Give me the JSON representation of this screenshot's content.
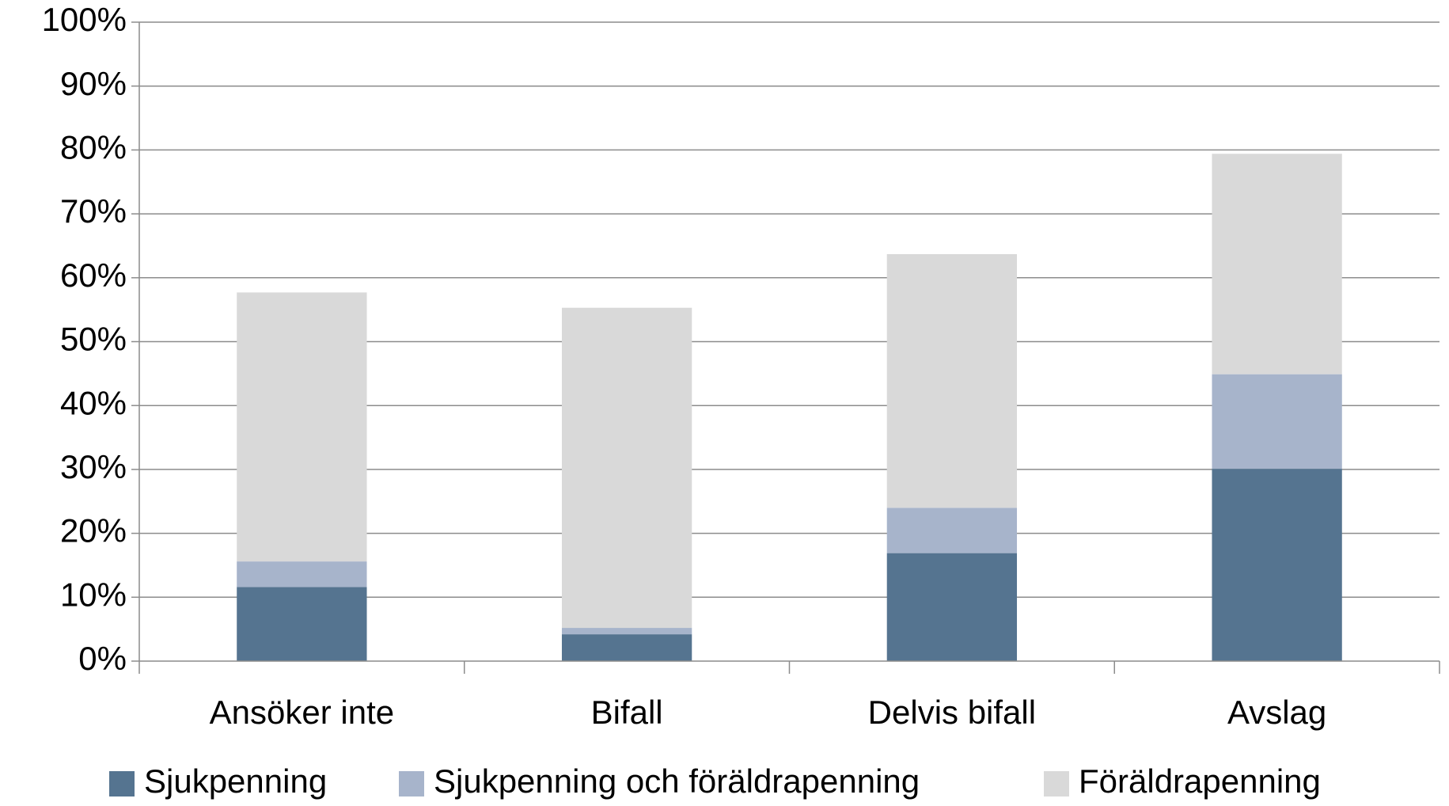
{
  "chart_data": {
    "type": "stacked_bar",
    "categories": [
      "Ansöker inte",
      "Bifall",
      "Delvis bifall",
      "Avslag"
    ],
    "series": [
      {
        "name": "Sjukpenning",
        "color": "#557490",
        "values": [
          11.6,
          4.2,
          16.9,
          30.1
        ]
      },
      {
        "name": "Sjukpenning och föräldrapenning",
        "color": "#a7b4cb",
        "values": [
          4.0,
          1.0,
          7.1,
          14.8
        ]
      },
      {
        "name": "Föräldrapenning",
        "color": "#d9d9d9",
        "values": [
          42.1,
          50.1,
          39.7,
          34.5
        ]
      }
    ],
    "ylim": [
      0,
      100
    ],
    "yticks": [
      {
        "value": 0,
        "label": "0%"
      },
      {
        "value": 10,
        "label": "10%"
      },
      {
        "value": 20,
        "label": "20%"
      },
      {
        "value": 30,
        "label": "30%"
      },
      {
        "value": 40,
        "label": "40%"
      },
      {
        "value": 50,
        "label": "50%"
      },
      {
        "value": 60,
        "label": "60%"
      },
      {
        "value": 70,
        "label": "70%"
      },
      {
        "value": 80,
        "label": "80%"
      },
      {
        "value": 90,
        "label": "90%"
      },
      {
        "value": 100,
        "label": "100%"
      }
    ],
    "grid": true,
    "legend": "bottom"
  }
}
